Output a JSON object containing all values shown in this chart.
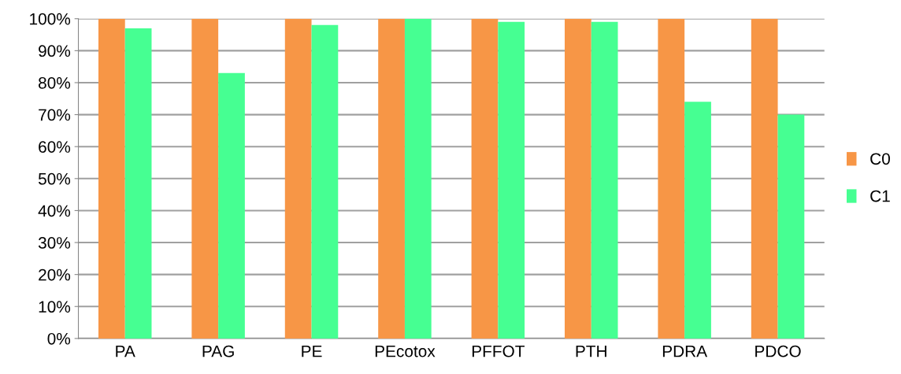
{
  "chart_data": {
    "type": "bar",
    "categories": [
      "PA",
      "PAG",
      "PE",
      "PEcotox",
      "PFFOT",
      "PTH",
      "PDRA",
      "PDCO"
    ],
    "series": [
      {
        "name": "C0",
        "color": "#f79646",
        "values": [
          100,
          100,
          100,
          100,
          100,
          100,
          100,
          100
        ]
      },
      {
        "name": "C1",
        "color": "#46ff92",
        "values": [
          97,
          83,
          98,
          100,
          99,
          99,
          74,
          70
        ]
      }
    ],
    "ylim": [
      0,
      100
    ],
    "yticks": [
      {
        "value": 0,
        "label": "0%"
      },
      {
        "value": 10,
        "label": "10%"
      },
      {
        "value": 20,
        "label": "20%"
      },
      {
        "value": 30,
        "label": "30%"
      },
      {
        "value": 40,
        "label": "40%"
      },
      {
        "value": 50,
        "label": "50%"
      },
      {
        "value": 60,
        "label": "60%"
      },
      {
        "value": 70,
        "label": "70%"
      },
      {
        "value": 80,
        "label": "80%"
      },
      {
        "value": 90,
        "label": "90%"
      },
      {
        "value": 100,
        "label": "100%"
      }
    ],
    "grid": "y",
    "legend": "right"
  }
}
